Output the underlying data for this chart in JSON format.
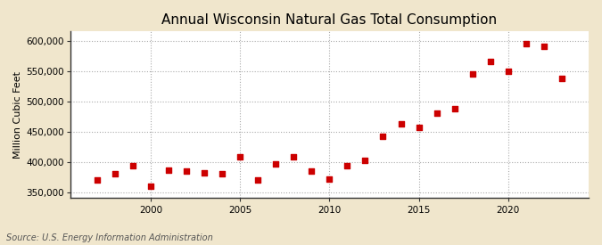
{
  "title": "Annual Wisconsin Natural Gas Total Consumption",
  "ylabel": "Million Cubic Feet",
  "source": "Source: U.S. Energy Information Administration",
  "figure_bg": "#f0e6cc",
  "plot_bg": "#ffffff",
  "marker_color": "#cc0000",
  "marker_size": 4,
  "years": [
    1997,
    1998,
    1999,
    2000,
    2001,
    2002,
    2003,
    2004,
    2005,
    2006,
    2007,
    2008,
    2009,
    2010,
    2011,
    2012,
    2013,
    2014,
    2015,
    2016,
    2017,
    2018,
    2019,
    2020,
    2021,
    2022,
    2023
  ],
  "values": [
    370000,
    381000,
    394000,
    360000,
    386000,
    384000,
    382000,
    381000,
    408000,
    370000,
    396000,
    408000,
    384000,
    372000,
    393000,
    402000,
    442000,
    462000,
    457000,
    480000,
    487000,
    545000,
    566000,
    549000,
    595000,
    590000,
    537000
  ],
  "xlim": [
    1995.5,
    2024.5
  ],
  "ylim": [
    340000,
    615000
  ],
  "yticks": [
    350000,
    400000,
    450000,
    500000,
    550000,
    600000
  ],
  "xticks": [
    2000,
    2005,
    2010,
    2015,
    2020
  ],
  "grid_color": "#aaaaaa",
  "spine_color": "#333333",
  "title_fontsize": 11,
  "label_fontsize": 8,
  "tick_fontsize": 7.5,
  "source_fontsize": 7
}
